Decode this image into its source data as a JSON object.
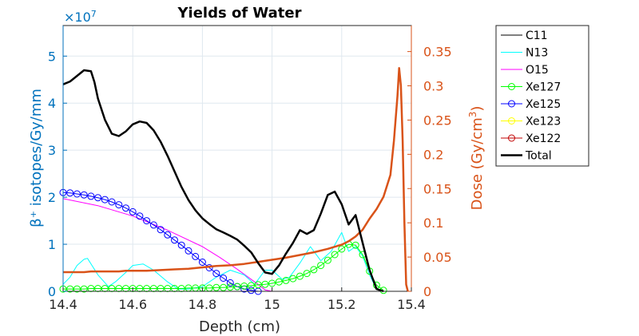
{
  "chart_data": {
    "type": "line",
    "title": "Yields of Water",
    "xlabel": "Depth (cm)",
    "ylabel_left": "β⁺ isotopes/Gy/mm",
    "ylabel_right_main": "Dose (Gy/cm",
    "ylabel_right_sup": "3",
    "ylabel_right_close": ")",
    "left_exponent_base": "×10",
    "left_exponent_power": "7",
    "xlim": [
      14.4,
      15.4
    ],
    "ylim_left": [
      0,
      5.65
    ],
    "ylim_right": [
      0,
      0.388
    ],
    "x_ticks": [
      "14.4",
      "14.6",
      "14.8",
      "15",
      "15.2",
      "15.4"
    ],
    "x_tick_values": [
      14.4,
      14.6,
      14.8,
      15.0,
      15.2,
      15.4
    ],
    "y_left_ticks": [
      "0",
      "1",
      "2",
      "3",
      "4",
      "5"
    ],
    "y_left_tick_values": [
      0,
      1,
      2,
      3,
      4,
      5
    ],
    "y_right_ticks": [
      "0",
      "0.05",
      "0.1",
      "0.15",
      "0.2",
      "0.25",
      "0.3",
      "0.35"
    ],
    "y_right_tick_values": [
      0,
      0.05,
      0.1,
      0.15,
      0.2,
      0.25,
      0.3,
      0.35
    ],
    "grid": true,
    "legend_position": "outside-right",
    "colors": {
      "left_axis": "#0072BD",
      "right_axis": "#D95319",
      "grid": "#dfe8ef"
    },
    "series": [
      {
        "name": "C11",
        "axis": "left",
        "color": "#000000",
        "width": 1,
        "marker": "none",
        "points": [
          [
            15.28,
            0
          ],
          [
            15.3,
            0
          ]
        ]
      },
      {
        "name": "N13",
        "axis": "left",
        "color": "#00FFFF",
        "width": 1,
        "marker": "none",
        "points": [
          [
            14.4,
            0.15
          ],
          [
            14.42,
            0.3
          ],
          [
            14.44,
            0.55
          ],
          [
            14.46,
            0.68
          ],
          [
            14.47,
            0.7
          ],
          [
            14.5,
            0.35
          ],
          [
            14.53,
            0.1
          ],
          [
            14.55,
            0.2
          ],
          [
            14.58,
            0.4
          ],
          [
            14.6,
            0.55
          ],
          [
            14.63,
            0.58
          ],
          [
            14.66,
            0.45
          ],
          [
            14.7,
            0.2
          ],
          [
            14.73,
            0.05
          ],
          [
            14.76,
            0.05
          ],
          [
            14.8,
            0.1
          ],
          [
            14.84,
            0.3
          ],
          [
            14.88,
            0.45
          ],
          [
            14.92,
            0.35
          ],
          [
            14.95,
            0.15
          ],
          [
            14.98,
            0.45
          ],
          [
            15.0,
            0.45
          ],
          [
            15.03,
            0.25
          ],
          [
            15.05,
            0.3
          ],
          [
            15.08,
            0.6
          ],
          [
            15.11,
            0.95
          ],
          [
            15.14,
            0.65
          ],
          [
            15.17,
            0.85
          ],
          [
            15.2,
            1.25
          ],
          [
            15.22,
            0.85
          ],
          [
            15.24,
            0.95
          ],
          [
            15.26,
            0.75
          ],
          [
            15.28,
            0.35
          ],
          [
            15.3,
            0.05
          ],
          [
            15.32,
            0
          ]
        ]
      },
      {
        "name": "O15",
        "axis": "left",
        "color": "#FF00FF",
        "width": 1,
        "marker": "none",
        "points": [
          [
            14.4,
            1.97
          ],
          [
            14.5,
            1.82
          ],
          [
            14.6,
            1.6
          ],
          [
            14.7,
            1.3
          ],
          [
            14.8,
            0.95
          ],
          [
            14.85,
            0.72
          ],
          [
            14.9,
            0.47
          ],
          [
            14.95,
            0.2
          ],
          [
            14.98,
            0.03
          ],
          [
            15.0,
            0
          ],
          [
            15.35,
            0
          ]
        ]
      },
      {
        "name": "Xe127",
        "axis": "left",
        "color": "#00FF00",
        "width": 1,
        "marker": "circle",
        "points": [
          [
            14.4,
            0.05
          ],
          [
            14.42,
            0.05
          ],
          [
            14.44,
            0.05
          ],
          [
            14.46,
            0.05
          ],
          [
            14.48,
            0.06
          ],
          [
            14.5,
            0.06
          ],
          [
            14.52,
            0.06
          ],
          [
            14.54,
            0.06
          ],
          [
            14.56,
            0.06
          ],
          [
            14.58,
            0.06
          ],
          [
            14.6,
            0.06
          ],
          [
            14.62,
            0.06
          ],
          [
            14.64,
            0.06
          ],
          [
            14.66,
            0.06
          ],
          [
            14.68,
            0.06
          ],
          [
            14.7,
            0.06
          ],
          [
            14.72,
            0.06
          ],
          [
            14.74,
            0.06
          ],
          [
            14.76,
            0.07
          ],
          [
            14.78,
            0.07
          ],
          [
            14.8,
            0.07
          ],
          [
            14.82,
            0.07
          ],
          [
            14.84,
            0.08
          ],
          [
            14.86,
            0.08
          ],
          [
            14.88,
            0.09
          ],
          [
            14.9,
            0.1
          ],
          [
            14.92,
            0.11
          ],
          [
            14.94,
            0.12
          ],
          [
            14.96,
            0.14
          ],
          [
            14.98,
            0.15
          ],
          [
            15.0,
            0.17
          ],
          [
            15.02,
            0.2
          ],
          [
            15.04,
            0.23
          ],
          [
            15.06,
            0.27
          ],
          [
            15.08,
            0.32
          ],
          [
            15.1,
            0.38
          ],
          [
            15.12,
            0.46
          ],
          [
            15.14,
            0.55
          ],
          [
            15.16,
            0.66
          ],
          [
            15.18,
            0.78
          ],
          [
            15.2,
            0.9
          ],
          [
            15.22,
            1.0
          ],
          [
            15.24,
            0.98
          ],
          [
            15.26,
            0.78
          ],
          [
            15.28,
            0.43
          ],
          [
            15.3,
            0.13
          ],
          [
            15.32,
            0.02
          ]
        ]
      },
      {
        "name": "Xe125",
        "axis": "left",
        "color": "#0000FF",
        "width": 1,
        "marker": "circle",
        "points": [
          [
            14.4,
            2.1
          ],
          [
            14.42,
            2.09
          ],
          [
            14.44,
            2.07
          ],
          [
            14.46,
            2.05
          ],
          [
            14.48,
            2.02
          ],
          [
            14.5,
            1.99
          ],
          [
            14.52,
            1.95
          ],
          [
            14.54,
            1.9
          ],
          [
            14.56,
            1.84
          ],
          [
            14.58,
            1.77
          ],
          [
            14.6,
            1.69
          ],
          [
            14.62,
            1.6
          ],
          [
            14.64,
            1.5
          ],
          [
            14.66,
            1.41
          ],
          [
            14.68,
            1.31
          ],
          [
            14.7,
            1.2
          ],
          [
            14.72,
            1.09
          ],
          [
            14.74,
            0.98
          ],
          [
            14.76,
            0.86
          ],
          [
            14.78,
            0.74
          ],
          [
            14.8,
            0.62
          ],
          [
            14.82,
            0.5
          ],
          [
            14.84,
            0.38
          ],
          [
            14.86,
            0.28
          ],
          [
            14.88,
            0.18
          ],
          [
            14.9,
            0.1
          ],
          [
            14.92,
            0.05
          ],
          [
            14.94,
            0.02
          ],
          [
            14.96,
            0
          ]
        ]
      },
      {
        "name": "Xe123",
        "axis": "left",
        "color": "#FFFF00",
        "width": 1,
        "marker": "circle",
        "points": []
      },
      {
        "name": "Xe122",
        "axis": "left",
        "color": "#C00000",
        "width": 1,
        "marker": "circle",
        "points": []
      },
      {
        "name": "Total",
        "axis": "left",
        "color": "#000000",
        "width": 2.5,
        "marker": "none",
        "points": [
          [
            14.4,
            4.4
          ],
          [
            14.42,
            4.46
          ],
          [
            14.44,
            4.58
          ],
          [
            14.46,
            4.7
          ],
          [
            14.48,
            4.68
          ],
          [
            14.49,
            4.45
          ],
          [
            14.5,
            4.1
          ],
          [
            14.52,
            3.65
          ],
          [
            14.54,
            3.35
          ],
          [
            14.56,
            3.3
          ],
          [
            14.58,
            3.4
          ],
          [
            14.6,
            3.55
          ],
          [
            14.62,
            3.61
          ],
          [
            14.64,
            3.58
          ],
          [
            14.66,
            3.42
          ],
          [
            14.68,
            3.18
          ],
          [
            14.7,
            2.88
          ],
          [
            14.72,
            2.55
          ],
          [
            14.74,
            2.22
          ],
          [
            14.76,
            1.94
          ],
          [
            14.78,
            1.72
          ],
          [
            14.8,
            1.55
          ],
          [
            14.82,
            1.43
          ],
          [
            14.84,
            1.32
          ],
          [
            14.86,
            1.25
          ],
          [
            14.88,
            1.18
          ],
          [
            14.9,
            1.1
          ],
          [
            14.92,
            0.97
          ],
          [
            14.94,
            0.83
          ],
          [
            14.96,
            0.6
          ],
          [
            14.98,
            0.4
          ],
          [
            15.0,
            0.37
          ],
          [
            15.02,
            0.55
          ],
          [
            15.04,
            0.8
          ],
          [
            15.06,
            1.03
          ],
          [
            15.08,
            1.3
          ],
          [
            15.1,
            1.22
          ],
          [
            15.12,
            1.3
          ],
          [
            15.14,
            1.65
          ],
          [
            15.16,
            2.05
          ],
          [
            15.18,
            2.12
          ],
          [
            15.2,
            1.85
          ],
          [
            15.22,
            1.42
          ],
          [
            15.24,
            1.62
          ],
          [
            15.26,
            1.03
          ],
          [
            15.28,
            0.45
          ],
          [
            15.3,
            0.05
          ],
          [
            15.32,
            0
          ]
        ]
      },
      {
        "name": "Dose",
        "axis": "right",
        "color": "#D95319",
        "width": 2.5,
        "marker": "none",
        "points": [
          [
            14.4,
            0.028
          ],
          [
            14.46,
            0.028
          ],
          [
            14.48,
            0.029
          ],
          [
            14.56,
            0.029
          ],
          [
            14.58,
            0.03
          ],
          [
            14.64,
            0.03
          ],
          [
            14.68,
            0.031
          ],
          [
            14.72,
            0.032
          ],
          [
            14.76,
            0.033
          ],
          [
            14.8,
            0.035
          ],
          [
            14.84,
            0.037
          ],
          [
            14.88,
            0.038
          ],
          [
            14.92,
            0.04
          ],
          [
            14.96,
            0.043
          ],
          [
            15.0,
            0.046
          ],
          [
            15.04,
            0.049
          ],
          [
            15.08,
            0.053
          ],
          [
            15.12,
            0.057
          ],
          [
            15.16,
            0.062
          ],
          [
            15.2,
            0.068
          ],
          [
            15.22,
            0.073
          ],
          [
            15.24,
            0.08
          ],
          [
            15.26,
            0.09
          ],
          [
            15.28,
            0.106
          ],
          [
            15.3,
            0.12
          ],
          [
            15.32,
            0.138
          ],
          [
            15.34,
            0.17
          ],
          [
            15.35,
            0.22
          ],
          [
            15.36,
            0.285
          ],
          [
            15.365,
            0.326
          ],
          [
            15.37,
            0.3
          ],
          [
            15.375,
            0.22
          ],
          [
            15.38,
            0.1
          ],
          [
            15.385,
            0.01
          ],
          [
            15.39,
            0
          ]
        ]
      }
    ]
  }
}
